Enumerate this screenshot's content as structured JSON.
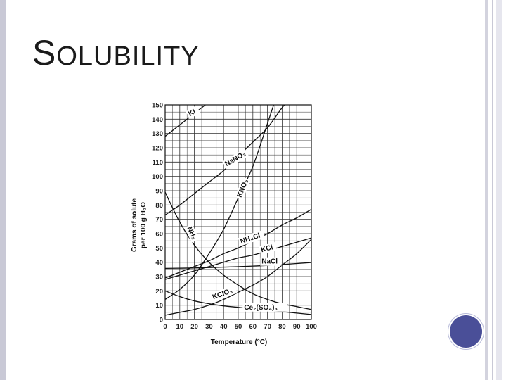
{
  "slide": {
    "title_first": "S",
    "title_rest": "OLUBILITY",
    "accent_color": "#4a4f98"
  },
  "chart_data": {
    "type": "line",
    "xlabel": "Temperature (°C)",
    "ylabel_line1": "Grams of solute",
    "ylabel_line2": "per 100 g H₂O",
    "xlim": [
      0,
      100
    ],
    "ylim": [
      0,
      150
    ],
    "x_ticks": [
      0,
      10,
      20,
      30,
      40,
      50,
      60,
      70,
      80,
      90,
      100
    ],
    "y_ticks": [
      0,
      10,
      20,
      30,
      40,
      50,
      60,
      70,
      80,
      90,
      100,
      110,
      120,
      130,
      140,
      150
    ],
    "grid": true,
    "series": [
      {
        "name": "KI",
        "label_at": [
          17,
          142
        ],
        "rotate": -30,
        "points": [
          [
            0,
            128
          ],
          [
            10,
            136
          ],
          [
            20,
            144
          ],
          [
            30,
            152
          ]
        ]
      },
      {
        "name": "NaNO₃",
        "label_at": [
          42,
          107
        ],
        "rotate": -30,
        "points": [
          [
            0,
            73
          ],
          [
            10,
            80
          ],
          [
            20,
            88
          ],
          [
            30,
            96
          ],
          [
            40,
            104
          ],
          [
            50,
            114
          ],
          [
            60,
            124
          ],
          [
            70,
            134
          ],
          [
            80,
            148
          ],
          [
            90,
            160
          ]
        ]
      },
      {
        "name": "KNO₃",
        "label_at": [
          52,
          85
        ],
        "rotate": -68,
        "points": [
          [
            0,
            14
          ],
          [
            10,
            21
          ],
          [
            20,
            31
          ],
          [
            30,
            46
          ],
          [
            40,
            63
          ],
          [
            50,
            85
          ],
          [
            60,
            107
          ],
          [
            70,
            137
          ],
          [
            80,
            168
          ]
        ]
      },
      {
        "name": "NH₃",
        "label_at": [
          15,
          64
        ],
        "rotate": 65,
        "points": [
          [
            0,
            89
          ],
          [
            10,
            68
          ],
          [
            20,
            52
          ],
          [
            30,
            40
          ],
          [
            40,
            31
          ],
          [
            50,
            24
          ],
          [
            60,
            18
          ],
          [
            70,
            14
          ],
          [
            80,
            11
          ],
          [
            90,
            9
          ],
          [
            100,
            7
          ]
        ]
      },
      {
        "name": "NH₄Cl",
        "label_at": [
          52,
          53
        ],
        "rotate": -18,
        "points": [
          [
            0,
            29
          ],
          [
            10,
            33
          ],
          [
            20,
            37
          ],
          [
            30,
            41
          ],
          [
            40,
            46
          ],
          [
            50,
            50
          ],
          [
            60,
            55
          ],
          [
            70,
            60
          ],
          [
            80,
            66
          ],
          [
            90,
            71
          ],
          [
            100,
            77
          ]
        ]
      },
      {
        "name": "KCl",
        "label_at": [
          66,
          47
        ],
        "rotate": -15,
        "points": [
          [
            0,
            28
          ],
          [
            10,
            31
          ],
          [
            20,
            34
          ],
          [
            30,
            37
          ],
          [
            40,
            40
          ],
          [
            50,
            43
          ],
          [
            60,
            45
          ],
          [
            70,
            48
          ],
          [
            80,
            51
          ],
          [
            90,
            54
          ],
          [
            100,
            57
          ]
        ]
      },
      {
        "name": "NaCl",
        "label_at": [
          66,
          39
        ],
        "rotate": 0,
        "points": [
          [
            0,
            35.7
          ],
          [
            20,
            36
          ],
          [
            40,
            36.6
          ],
          [
            60,
            37.3
          ],
          [
            80,
            38.4
          ],
          [
            100,
            39.8
          ]
        ]
      },
      {
        "name": "KClO₃",
        "label_at": [
          33,
          14
        ],
        "rotate": -20,
        "points": [
          [
            0,
            3
          ],
          [
            10,
            5
          ],
          [
            20,
            7
          ],
          [
            30,
            10
          ],
          [
            40,
            14
          ],
          [
            50,
            19
          ],
          [
            60,
            24
          ],
          [
            70,
            30
          ],
          [
            80,
            38
          ],
          [
            90,
            46
          ],
          [
            100,
            56
          ]
        ]
      },
      {
        "name": "Ce₂(SO₄)₃",
        "label_at": [
          54,
          7
        ],
        "rotate": 0,
        "points": [
          [
            0,
            20
          ],
          [
            10,
            16
          ],
          [
            20,
            13
          ],
          [
            30,
            11
          ],
          [
            40,
            9.5
          ],
          [
            50,
            8.5
          ],
          [
            60,
            7.5
          ],
          [
            70,
            6.5
          ],
          [
            80,
            5.5
          ],
          [
            90,
            4.5
          ],
          [
            100,
            3.5
          ]
        ]
      }
    ]
  }
}
